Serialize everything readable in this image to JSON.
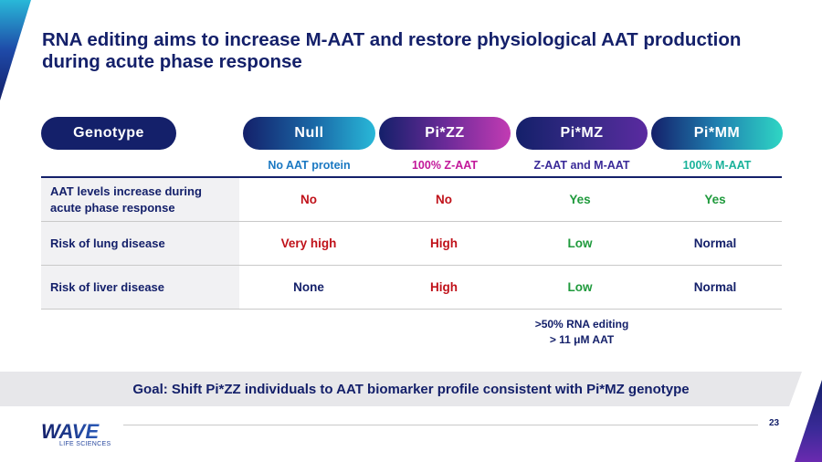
{
  "title": "RNA editing aims to increase M-AAT and restore physiological AAT production during acute phase response",
  "colors": {
    "navy": "#14206a",
    "red": "#c0121a",
    "magenta": "#c2189a",
    "green": "#1f9a3c",
    "blue": "#1a78c2",
    "purple": "#5a2aa0",
    "teal": "#1ab29a"
  },
  "table": {
    "header_label": "Genotype",
    "columns": [
      {
        "name": "Null",
        "subtitle": "No AAT protein"
      },
      {
        "name": "Pi*ZZ",
        "subtitle": "100% Z-AAT"
      },
      {
        "name": "Pi*MZ",
        "subtitle": "Z-AAT and M-AAT"
      },
      {
        "name": "Pi*MM",
        "subtitle": "100% M-AAT"
      }
    ],
    "rows": [
      {
        "label": "AAT levels increase during acute phase response",
        "values": [
          "No",
          "No",
          "Yes",
          "Yes"
        ]
      },
      {
        "label": "Risk of lung disease",
        "values": [
          "Very high",
          "High",
          "Low",
          "Normal"
        ]
      },
      {
        "label": "Risk of liver disease",
        "values": [
          "None",
          "High",
          "Low",
          "Normal"
        ]
      }
    ]
  },
  "note": {
    "line1": ">50% RNA editing",
    "line2": "> 11 μM AAT"
  },
  "goal": "Goal: Shift Pi*ZZ individuals to AAT biomarker profile consistent with Pi*MZ genotype",
  "logo": {
    "word": "WAVE",
    "sub": "LIFE SCIENCES"
  },
  "page_number": "23"
}
